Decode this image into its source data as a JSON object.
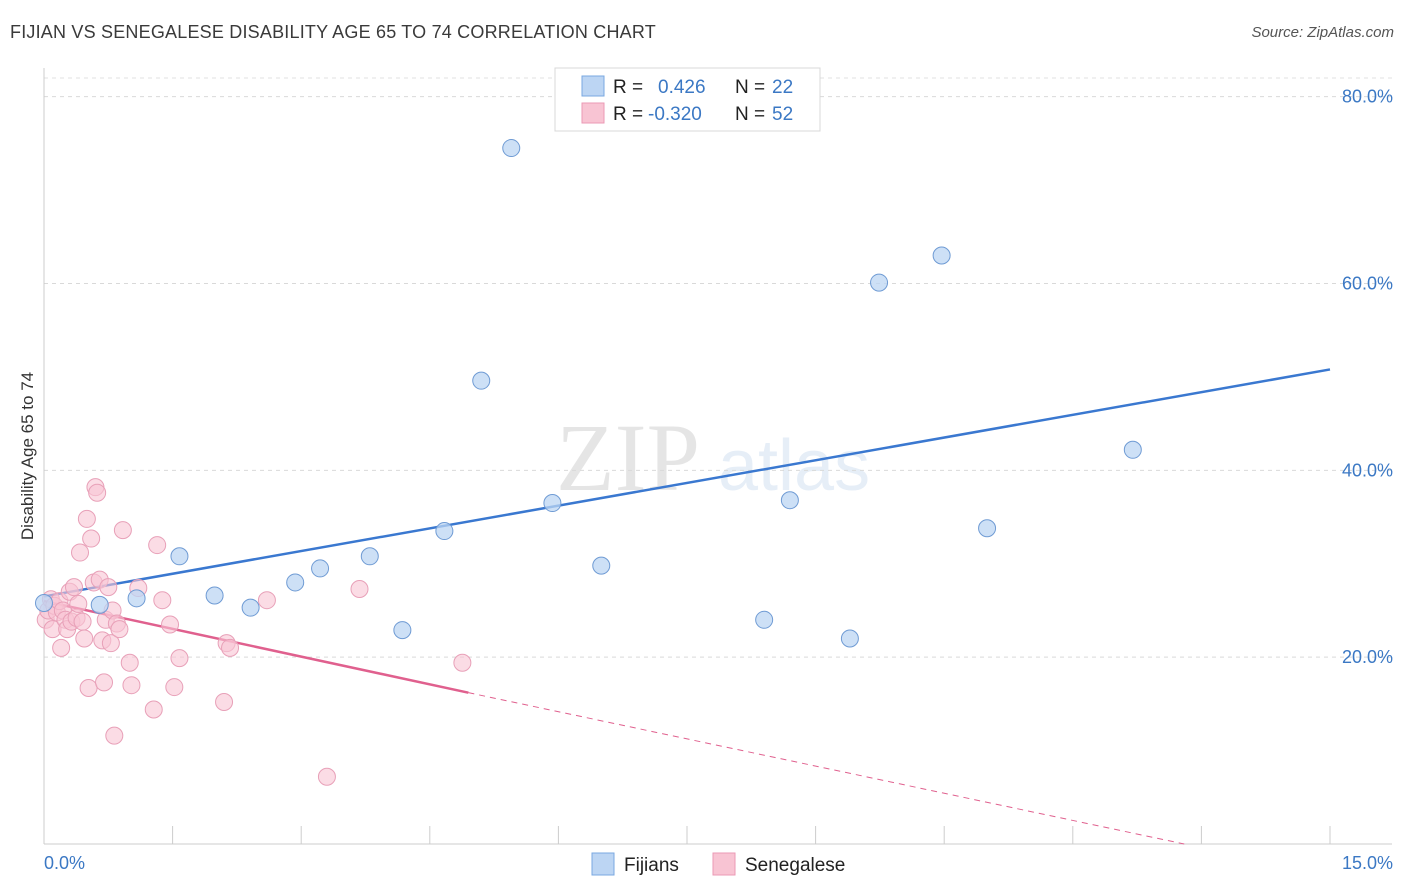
{
  "header": {
    "title": "FIJIAN VS SENEGALESE DISABILITY AGE 65 TO 74 CORRELATION CHART",
    "source": "Source: ZipAtlas.com"
  },
  "watermark": {
    "zip": "ZIP",
    "atlas": "atlas"
  },
  "legend": {
    "rows": [
      {
        "r_label": "R =",
        "r_value": "0.426",
        "n_label": "N =",
        "n_value": "22",
        "color": "#a9c8f0"
      },
      {
        "r_label": "R =",
        "r_value": "-0.320",
        "n_label": "N =",
        "n_value": "52",
        "color": "#f5b8c8"
      }
    ]
  },
  "bottom_legend": {
    "items": [
      {
        "label": "Fijians",
        "color": "#a9c8f0"
      },
      {
        "label": "Senegalese",
        "color": "#f5b8c8"
      }
    ]
  },
  "chart_data": {
    "type": "scatter",
    "title": "FIJIAN VS SENEGALESE DISABILITY AGE 65 TO 74 CORRELATION CHART",
    "xlabel": "",
    "ylabel": "Disability Age 65 to 74",
    "xlim": [
      0,
      15
    ],
    "ylim": [
      0,
      82
    ],
    "x_tick_labels": [
      "0.0%",
      "15.0%"
    ],
    "y_ticks": [
      20,
      40,
      60,
      80
    ],
    "y_tick_labels": [
      "20.0%",
      "40.0%",
      "60.0%",
      "80.0%"
    ],
    "grid": true,
    "legend_position": "top-center",
    "colors": {
      "fijians": "#3a78d0",
      "senegalese": "#e0608e",
      "fijians_fill": "#bcd5f3",
      "senegalese_fill": "#f8c4d3"
    },
    "series": [
      {
        "name": "Fijians",
        "points": [
          [
            0.0,
            25.8
          ],
          [
            0.65,
            25.6
          ],
          [
            1.08,
            26.3
          ],
          [
            1.58,
            30.8
          ],
          [
            1.99,
            26.6
          ],
          [
            2.41,
            25.3
          ],
          [
            2.93,
            28.0
          ],
          [
            3.22,
            29.5
          ],
          [
            3.8,
            30.8
          ],
          [
            4.18,
            22.9
          ],
          [
            4.67,
            33.5
          ],
          [
            5.1,
            49.6
          ],
          [
            5.45,
            74.5
          ],
          [
            5.93,
            36.5
          ],
          [
            6.5,
            29.8
          ],
          [
            8.4,
            24.0
          ],
          [
            8.7,
            36.8
          ],
          [
            9.4,
            22.0
          ],
          [
            9.74,
            60.1
          ],
          [
            10.47,
            63.0
          ],
          [
            11.0,
            33.8
          ],
          [
            12.7,
            42.2
          ]
        ],
        "trend": {
          "x": [
            0.0,
            15.0
          ],
          "y": [
            26.5,
            50.8
          ]
        }
      },
      {
        "name": "Senegalese",
        "points": [
          [
            0.02,
            24.0
          ],
          [
            0.05,
            25.0
          ],
          [
            0.08,
            26.2
          ],
          [
            0.1,
            23.0
          ],
          [
            0.12,
            25.5
          ],
          [
            0.15,
            24.8
          ],
          [
            0.18,
            26.0
          ],
          [
            0.2,
            21.0
          ],
          [
            0.22,
            25.0
          ],
          [
            0.25,
            24.0
          ],
          [
            0.27,
            23.0
          ],
          [
            0.3,
            27.0
          ],
          [
            0.32,
            23.8
          ],
          [
            0.35,
            27.5
          ],
          [
            0.38,
            24.2
          ],
          [
            0.4,
            25.7
          ],
          [
            0.42,
            31.2
          ],
          [
            0.45,
            23.8
          ],
          [
            0.47,
            22.0
          ],
          [
            0.5,
            34.8
          ],
          [
            0.52,
            16.7
          ],
          [
            0.55,
            32.7
          ],
          [
            0.58,
            28.0
          ],
          [
            0.6,
            38.2
          ],
          [
            0.62,
            37.6
          ],
          [
            0.65,
            28.3
          ],
          [
            0.68,
            21.8
          ],
          [
            0.7,
            17.3
          ],
          [
            0.72,
            24.0
          ],
          [
            0.75,
            27.5
          ],
          [
            0.78,
            21.5
          ],
          [
            0.8,
            25.0
          ],
          [
            0.82,
            11.6
          ],
          [
            0.85,
            23.6
          ],
          [
            0.88,
            23.0
          ],
          [
            0.92,
            33.6
          ],
          [
            1.0,
            19.4
          ],
          [
            1.02,
            17.0
          ],
          [
            1.1,
            27.4
          ],
          [
            1.28,
            14.4
          ],
          [
            1.32,
            32.0
          ],
          [
            1.38,
            26.1
          ],
          [
            1.47,
            23.5
          ],
          [
            1.52,
            16.8
          ],
          [
            1.58,
            19.9
          ],
          [
            2.1,
            15.2
          ],
          [
            2.13,
            21.5
          ],
          [
            2.17,
            21.0
          ],
          [
            2.6,
            26.1
          ],
          [
            3.3,
            7.2
          ],
          [
            3.68,
            27.3
          ],
          [
            4.88,
            19.4
          ]
        ],
        "trend": {
          "x": [
            0.0,
            4.95
          ],
          "y": [
            26.0,
            16.2
          ]
        },
        "trend_dashed": {
          "x": [
            4.95,
            13.3
          ],
          "y": [
            16.2,
            0.0
          ]
        }
      }
    ]
  }
}
